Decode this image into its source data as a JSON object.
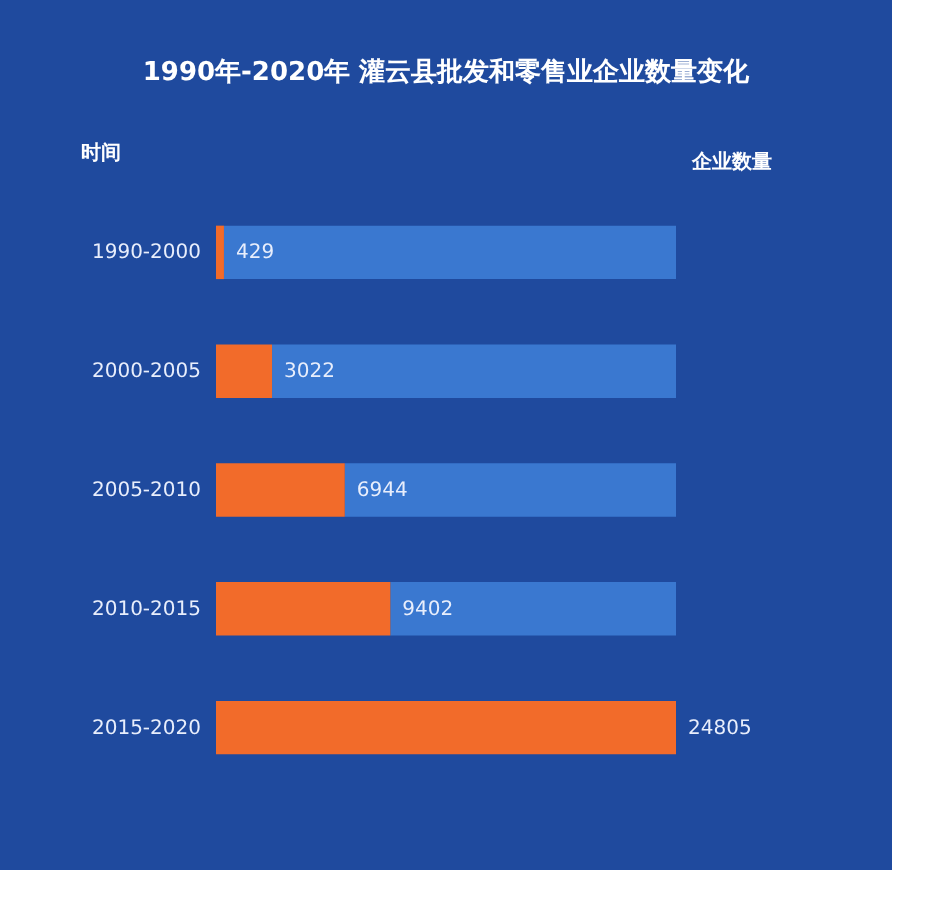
{
  "chart_data": {
    "type": "bar",
    "orientation": "horizontal",
    "title": "1990年-2020年 灌云县批发和零售业企业数量变化",
    "ylabel": "时间",
    "annotations": [
      "企业数量"
    ],
    "categories": [
      "1990-2000",
      "2000-2005",
      "2005-2010",
      "2010-2015",
      "2015-2020"
    ],
    "series": [
      {
        "color": "#f26b2a",
        "values": [
          429,
          3022,
          6944,
          9402,
          24805
        ]
      }
    ],
    "data_labels": true
  }
}
